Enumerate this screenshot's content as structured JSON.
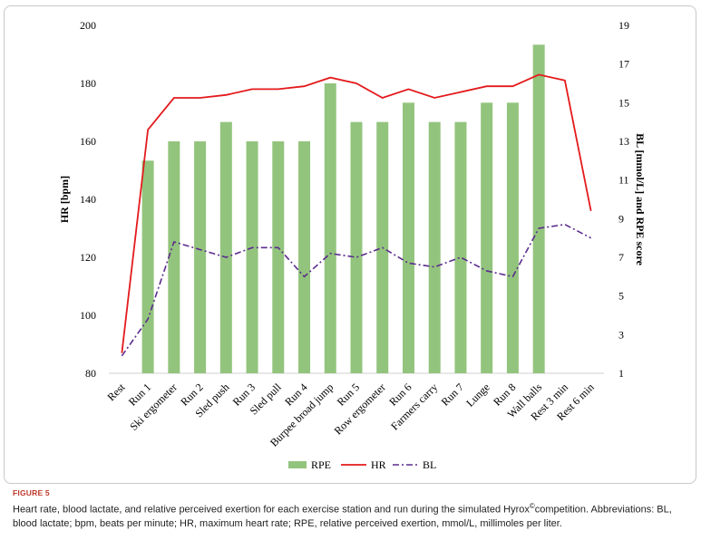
{
  "figure": {
    "label": "FIGURE 5",
    "caption_before": "Heart rate, blood lactate, and relative perceived exertion for each exercise station and run during the simulated Hyrox",
    "caption_mark": "©",
    "caption_after": "competition. Abbreviations: BL, blood lactate; bpm, beats per minute; HR, maximum heart rate; RPE, relative perceived exertion, mmol/L, millimoles per liter."
  },
  "chart_data": {
    "type": "bar",
    "title": "",
    "categories": [
      "Rest",
      "Run 1",
      "Ski ergometer",
      "Run 2",
      "Sled push",
      "Run 3",
      "Sled pull",
      "Run 4",
      "Burpee broad jump",
      "Run 5",
      "Row ergometer",
      "Run 6",
      "Farmers carry",
      "Run 7",
      "Lunge",
      "Run 8",
      "Wall balls",
      "Rest 3 min",
      "Rest 6 min"
    ],
    "ylabel": "HR [bpm]",
    "y2label": "BL [mmol/L] and RPE score",
    "ylim": [
      80,
      200
    ],
    "yticks": [
      80,
      100,
      120,
      140,
      160,
      180,
      200
    ],
    "y2lim": [
      1,
      19
    ],
    "y2ticks": [
      1,
      3,
      5,
      7,
      9,
      11,
      13,
      15,
      17,
      19
    ],
    "grid": false,
    "legend": "bottom",
    "series": [
      {
        "name": "RPE",
        "kind": "bar",
        "axis": "right",
        "color": "#93c47d",
        "values": [
          null,
          12,
          13,
          13,
          14,
          13,
          13,
          13,
          16,
          14,
          14,
          15,
          14,
          14,
          15,
          15,
          18,
          null,
          null
        ]
      },
      {
        "name": "HR",
        "kind": "line",
        "axis": "left",
        "color": "#e31a1c",
        "values": [
          87,
          164,
          175,
          175,
          176,
          178,
          178,
          179,
          182,
          180,
          175,
          178,
          175,
          177,
          179,
          179,
          183,
          181,
          136
        ]
      },
      {
        "name": "BL",
        "kind": "dashdot",
        "axis": "right",
        "color": "#5b2c8e",
        "values": [
          1.9,
          3.8,
          7.8,
          7.4,
          7.0,
          7.5,
          7.5,
          6.0,
          7.2,
          7.0,
          7.5,
          6.7,
          6.5,
          7.0,
          6.3,
          6.0,
          8.5,
          8.7,
          8.0
        ]
      }
    ]
  }
}
